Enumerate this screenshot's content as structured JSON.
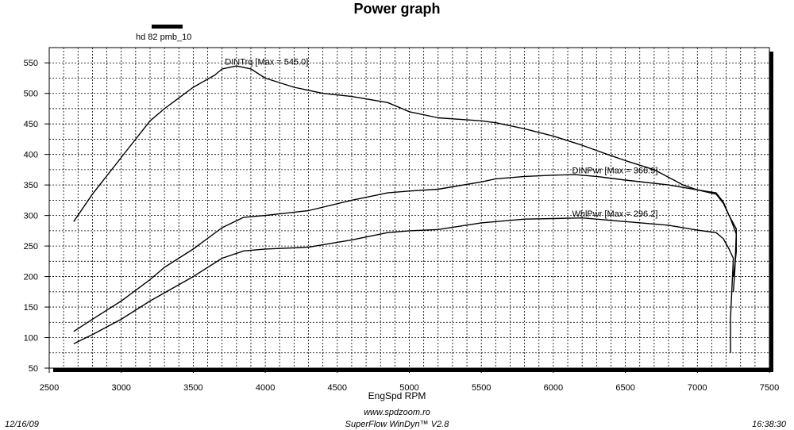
{
  "chart_data": {
    "type": "line",
    "title": "Power graph",
    "legend": {
      "label": "hd 82 pmb_10",
      "color": "#000000",
      "placement": "top-left"
    },
    "xlabel": "EngSpd  RPM",
    "ylabel": "",
    "xlim": [
      2500,
      7500
    ],
    "ylim": [
      50,
      575
    ],
    "xticks": [
      2500,
      3000,
      3500,
      4000,
      4500,
      5000,
      5500,
      6000,
      6500,
      7000,
      7500
    ],
    "yticks": [
      50,
      100,
      150,
      200,
      250,
      300,
      350,
      400,
      450,
      500,
      550
    ],
    "grid": true,
    "series": [
      {
        "name": "DINTrq",
        "label": "DINTrq [Max = 545.0]",
        "points": [
          [
            2670,
            290
          ],
          [
            2800,
            335
          ],
          [
            3000,
            395
          ],
          [
            3200,
            455
          ],
          [
            3300,
            475
          ],
          [
            3500,
            510
          ],
          [
            3650,
            530
          ],
          [
            3700,
            540
          ],
          [
            3800,
            545
          ],
          [
            3900,
            540
          ],
          [
            4000,
            525
          ],
          [
            4200,
            510
          ],
          [
            4400,
            500
          ],
          [
            4600,
            495
          ],
          [
            4850,
            485
          ],
          [
            5000,
            470
          ],
          [
            5200,
            460
          ],
          [
            5500,
            455
          ],
          [
            5600,
            452
          ],
          [
            5800,
            442
          ],
          [
            6000,
            430
          ],
          [
            6200,
            415
          ],
          [
            6400,
            398
          ],
          [
            6500,
            390
          ],
          [
            6700,
            375
          ],
          [
            6900,
            350
          ],
          [
            7000,
            342
          ],
          [
            7130,
            335
          ],
          [
            7180,
            320
          ],
          [
            7230,
            295
          ],
          [
            7270,
            270
          ],
          [
            7260,
            210
          ],
          [
            7250,
            175
          ]
        ]
      },
      {
        "name": "DINPwr",
        "label": "DINPwr [Max = 366.9]",
        "points": [
          [
            2670,
            110
          ],
          [
            2800,
            130
          ],
          [
            3000,
            160
          ],
          [
            3200,
            195
          ],
          [
            3300,
            215
          ],
          [
            3500,
            245
          ],
          [
            3700,
            280
          ],
          [
            3850,
            297
          ],
          [
            4000,
            300
          ],
          [
            4300,
            308
          ],
          [
            4600,
            325
          ],
          [
            4850,
            337
          ],
          [
            5000,
            340
          ],
          [
            5200,
            343
          ],
          [
            5500,
            355
          ],
          [
            5600,
            360
          ],
          [
            5800,
            364
          ],
          [
            6000,
            366
          ],
          [
            6150,
            367
          ],
          [
            6300,
            364
          ],
          [
            6500,
            358
          ],
          [
            6800,
            350
          ],
          [
            7000,
            342
          ],
          [
            7130,
            337
          ],
          [
            7180,
            322
          ],
          [
            7220,
            300
          ],
          [
            7270,
            278
          ],
          [
            7270,
            240
          ],
          [
            7250,
            200
          ]
        ]
      },
      {
        "name": "WhlPwr",
        "label": "WhlPwr [Max = 296.2]",
        "points": [
          [
            2670,
            90
          ],
          [
            2800,
            105
          ],
          [
            3000,
            130
          ],
          [
            3200,
            160
          ],
          [
            3500,
            200
          ],
          [
            3700,
            230
          ],
          [
            3850,
            242
          ],
          [
            4000,
            245
          ],
          [
            4300,
            248
          ],
          [
            4600,
            260
          ],
          [
            4850,
            272
          ],
          [
            5000,
            275
          ],
          [
            5200,
            277
          ],
          [
            5500,
            288
          ],
          [
            5800,
            294
          ],
          [
            6000,
            295
          ],
          [
            6200,
            296
          ],
          [
            6500,
            290
          ],
          [
            6800,
            284
          ],
          [
            7000,
            276
          ],
          [
            7130,
            272
          ],
          [
            7180,
            262
          ],
          [
            7220,
            245
          ],
          [
            7250,
            230
          ],
          [
            7240,
            180
          ],
          [
            7230,
            130
          ],
          [
            7230,
            75
          ]
        ]
      }
    ],
    "annotations": [
      {
        "series": "DINTrq",
        "text": "DINTrq [Max = 545.0]",
        "x": 3720,
        "y": 547
      },
      {
        "series": "DINPwr",
        "text": "DINPwr [Max = 366.9]",
        "x": 6130,
        "y": 369
      },
      {
        "series": "WhlPwr",
        "text": "WhlPwr [Max = 296.2]",
        "x": 6130,
        "y": 298
      }
    ]
  },
  "footer": {
    "url": "www.spdzoom.ro",
    "software": "SuperFlow WinDyn™ V2.8",
    "date": "12/16/09",
    "time": "16:38:30"
  }
}
